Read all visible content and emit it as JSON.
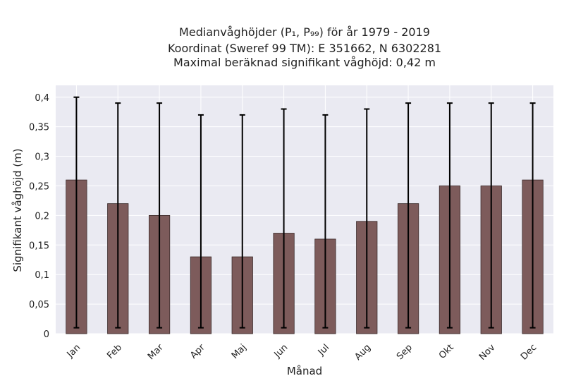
{
  "chart_data": {
    "type": "bar",
    "title_lines": [
      "Medianvåghöjder (P₁, P₉₉) för år 1979 - 2019",
      "Koordinat (Sweref 99 TM): E 351662, N 6302281",
      "Maximal beräknad signifikant våghöjd: 0,42 m"
    ],
    "xlabel": "Månad",
    "ylabel": "Signifikant våghöjd (m)",
    "categories": [
      "Jan",
      "Feb",
      "Mar",
      "Apr",
      "Maj",
      "Jun",
      "Jul",
      "Aug",
      "Sep",
      "Okt",
      "Nov",
      "Dec"
    ],
    "series": [
      {
        "values": [
          0.26,
          0.22,
          0.2,
          0.13,
          0.13,
          0.17,
          0.16,
          0.19,
          0.22,
          0.25,
          0.25,
          0.26
        ],
        "p1": [
          0.01,
          0.01,
          0.01,
          0.01,
          0.01,
          0.01,
          0.01,
          0.01,
          0.01,
          0.01,
          0.01,
          0.01
        ],
        "p99": [
          0.4,
          0.39,
          0.39,
          0.37,
          0.37,
          0.38,
          0.37,
          0.38,
          0.39,
          0.39,
          0.39,
          0.39
        ]
      }
    ],
    "yticks": [
      0,
      0.05,
      0.1,
      0.15,
      0.2,
      0.25,
      0.3,
      0.35,
      0.4
    ],
    "ytick_labels": [
      "0",
      "0,05",
      "0,1",
      "0,15",
      "0,2",
      "0,25",
      "0,3",
      "0,35",
      "0,4"
    ],
    "ylim": [
      0,
      0.42
    ],
    "grid": true,
    "colors": {
      "bar": "#7d5b5b",
      "bar_edge": "#3a2a2a",
      "errorbar": "#000000",
      "plot_background": "#eaeaf2",
      "grid": "#ffffff"
    }
  }
}
